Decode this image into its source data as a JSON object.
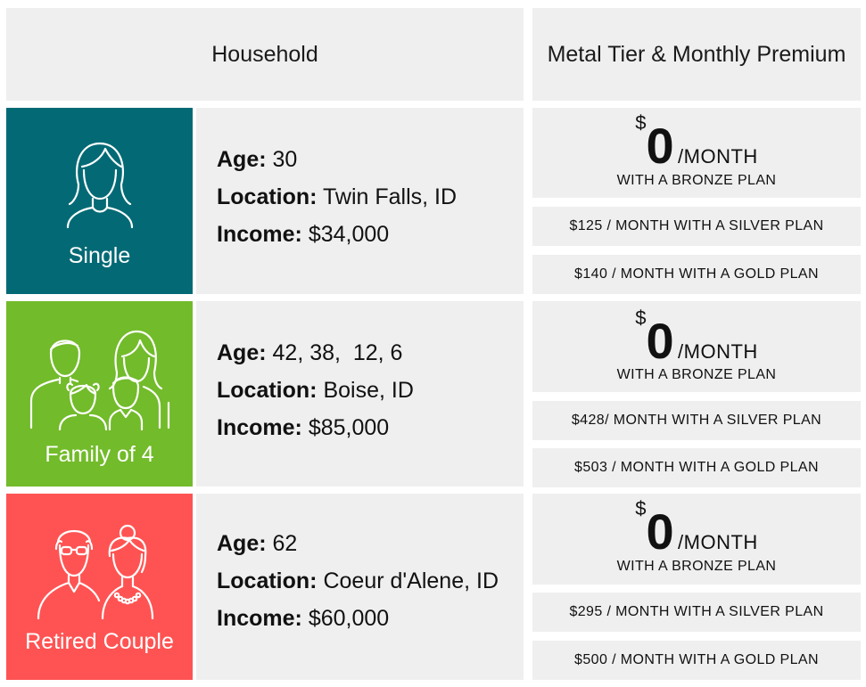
{
  "header": {
    "household": "Household",
    "premium": "Metal Tier & Monthly Premium"
  },
  "labels": {
    "age": "Age:",
    "location": "Location:",
    "income": "Income:",
    "dollar_sign": "$",
    "per_month": "/MONTH",
    "bronze_sub": "WITH A BRONZE PLAN"
  },
  "rows": [
    {
      "household_type": "Single",
      "icon": "woman-icon",
      "color": "#036a75",
      "age": "30",
      "location": "Twin Falls, ID",
      "income": "$34,000",
      "bronze_amount": "0",
      "silver": "$125 / MONTH WITH A SILVER PLAN",
      "gold": "$140 / MONTH WITH A GOLD PLAN"
    },
    {
      "household_type": "Family of 4",
      "icon": "family-icon",
      "color": "#72bb2a",
      "age": "42, 38,  12, 6",
      "location": "Boise, ID",
      "income": "$85,000",
      "bronze_amount": "0",
      "silver": "$428/ MONTH WITH A SILVER PLAN",
      "gold": "$503 / MONTH WITH A GOLD PLAN"
    },
    {
      "household_type": "Retired Couple",
      "icon": "elderly-couple-icon",
      "color": "#ff5353",
      "age": "62",
      "location": "Coeur d'Alene, ID",
      "income": "$60,000",
      "bronze_amount": "0",
      "silver": "$295 / MONTH WITH A SILVER PLAN",
      "gold": "$500 / MONTH WITH A GOLD PLAN"
    }
  ]
}
